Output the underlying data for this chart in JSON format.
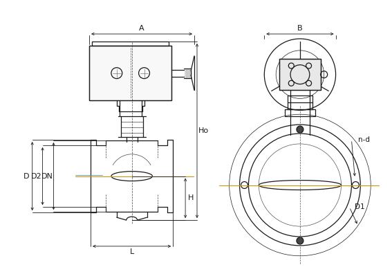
{
  "bg_color": "#ffffff",
  "line_color": "#1a1a1a",
  "dim_color": "#1a1a1a",
  "cl_color_orange": "#c8960a",
  "cl_color_blue": "#5588cc",
  "label_A": "A",
  "label_B": "B",
  "label_Ho": "Ho",
  "label_H": "H",
  "label_L": "L",
  "label_D": "D",
  "label_D1": "D1",
  "label_D2": "D2",
  "label_DN": "DN",
  "label_nd": "n-d",
  "lw_main": 0.9,
  "lw_thin": 0.5,
  "lw_dim": 0.6
}
